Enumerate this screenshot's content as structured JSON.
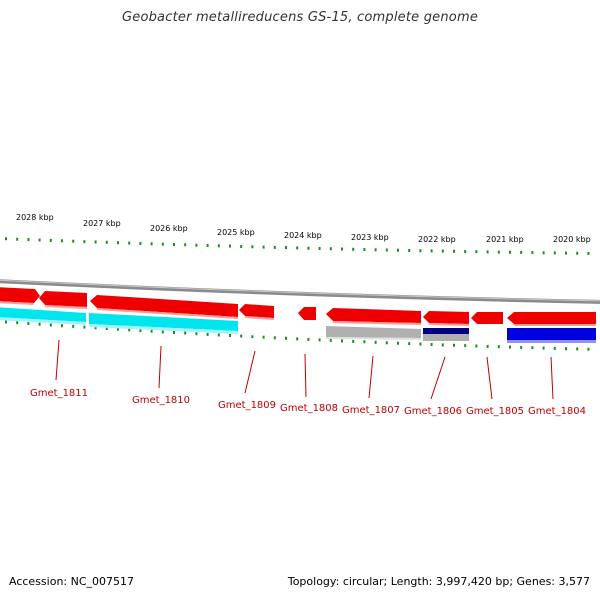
{
  "title": "Geobacter metallireducens GS-15, complete genome",
  "scale_ticks": [
    "2028 kbp",
    "2027 kbp",
    "2026 kbp",
    "2025 kbp",
    "2024 kbp",
    "2023 kbp",
    "2022 kbp",
    "2021 kbp",
    "2020 kbp"
  ],
  "gene_labels": [
    "Gmet_1811",
    "Gmet_1810",
    "Gmet_1809",
    "Gmet_1808",
    "Gmet_1807",
    "Gmet_1806",
    "Gmet_1805",
    "Gmet_1804"
  ],
  "footer": {
    "accession": "Accession: NC_007517",
    "summary": "Topology: circular; Length: 3,997,420 bp; Genes: 3,577"
  },
  "colors": {
    "backbone": "#8a8a8a",
    "forward_gene": "#ee0000",
    "tick_green": "#228b22",
    "label_red": "#c00000",
    "cyan_feature": "#00e5ee",
    "gray_feature": "#b0b0b0",
    "navy_feature": "#000080",
    "blue_feature": "#0000dd"
  }
}
